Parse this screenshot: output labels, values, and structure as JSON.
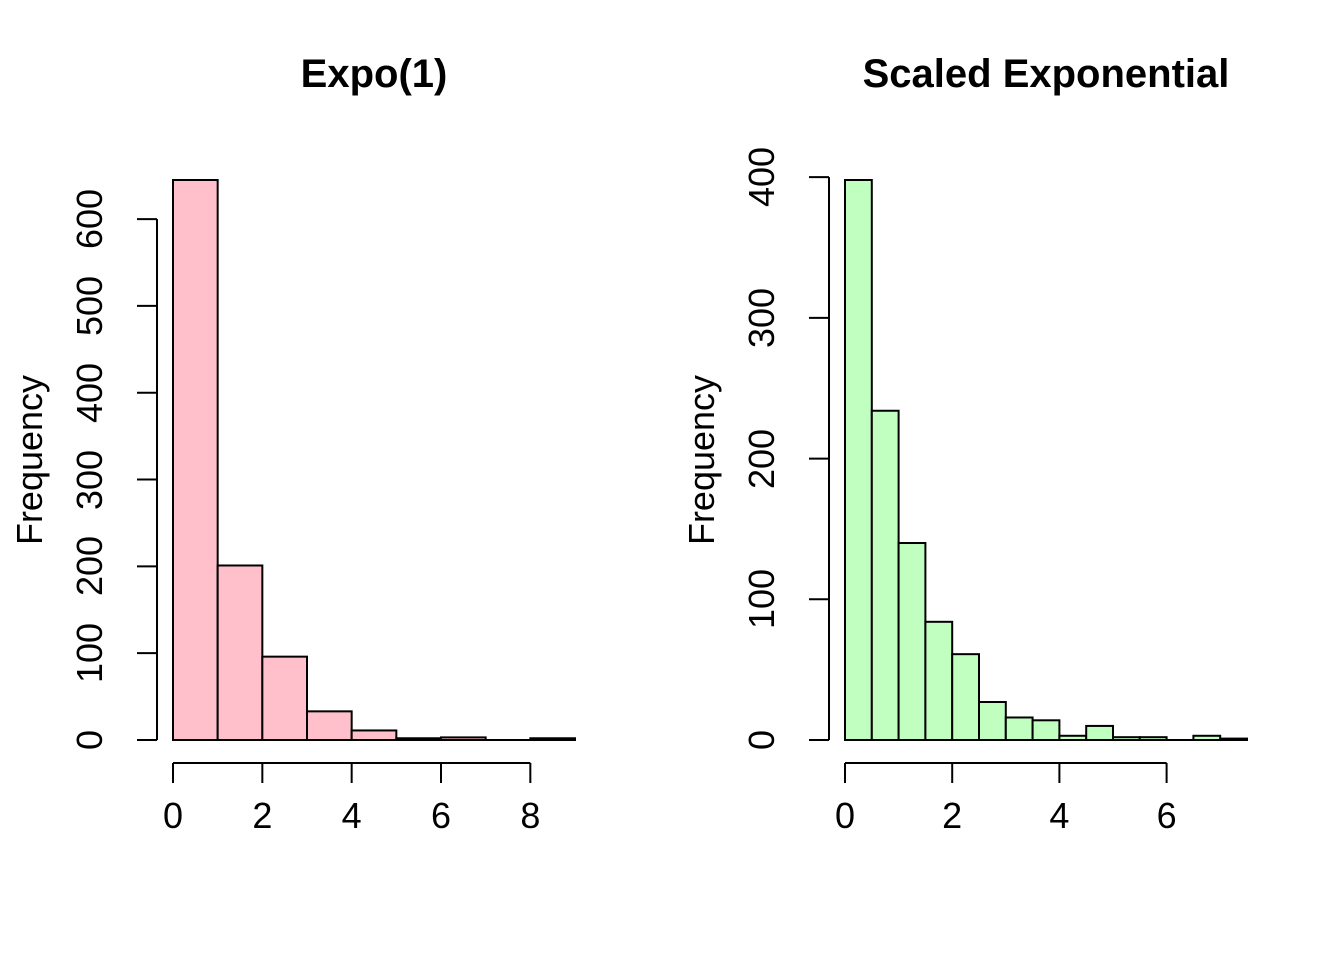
{
  "figure": {
    "background_color": "#FFFFFF",
    "axis_color": "#000000"
  },
  "chart_data": [
    {
      "type": "bar",
      "subtype": "histogram",
      "title": "Expo(1)",
      "xlabel": "",
      "ylabel": "Frequency",
      "bar_fill": "#FFC0CB",
      "bar_border": "#000000",
      "bin_start": 0,
      "bin_width": 1,
      "bin_edges": [
        0,
        1,
        2,
        3,
        4,
        5,
        6,
        7,
        8,
        9
      ],
      "counts": [
        645,
        201,
        96,
        33,
        11,
        2,
        3,
        0,
        2
      ],
      "x_ticks": [
        0,
        2,
        4,
        6,
        8
      ],
      "y_ticks": [
        0,
        100,
        200,
        300,
        400,
        500,
        600
      ],
      "xlim": [
        0,
        9
      ],
      "ylim": [
        0,
        645
      ],
      "grid": false,
      "legend": null
    },
    {
      "type": "bar",
      "subtype": "histogram",
      "title": "Scaled Exponential",
      "xlabel": "",
      "ylabel": "Frequency",
      "bar_fill": "#C1FFC1",
      "bar_border": "#000000",
      "bin_start": 0,
      "bin_width": 0.5,
      "bin_edges": [
        0,
        0.5,
        1,
        1.5,
        2,
        2.5,
        3,
        3.5,
        4,
        4.5,
        5,
        5.5,
        6,
        6.5,
        7,
        7.5
      ],
      "counts": [
        398,
        234,
        140,
        84,
        61,
        27,
        16,
        14,
        3,
        10,
        2,
        2,
        0,
        3,
        1
      ],
      "x_ticks": [
        0,
        2,
        4,
        6
      ],
      "y_ticks": [
        0,
        100,
        200,
        300,
        400
      ],
      "xlim": [
        0,
        7.5
      ],
      "ylim": [
        0,
        398
      ],
      "grid": false,
      "legend": null
    }
  ]
}
